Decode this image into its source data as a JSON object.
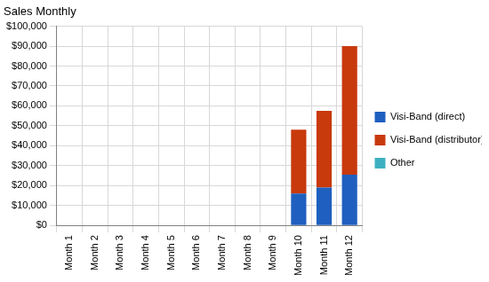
{
  "chart_data": {
    "type": "bar",
    "title": "Sales Monthly",
    "categories": [
      "Month 1",
      "Month 2",
      "Month 3",
      "Month 4",
      "Month 5",
      "Month 6",
      "Month 7",
      "Month 8",
      "Month 9",
      "Month 10",
      "Month 11",
      "Month 12"
    ],
    "series": [
      {
        "name": "Visi-Band (direct)",
        "color": "#1f5fbf",
        "values": [
          0,
          0,
          0,
          0,
          0,
          0,
          0,
          0,
          0,
          16000,
          19000,
          25500
        ]
      },
      {
        "name": "Visi-Band (distributor)",
        "color": "#c8390c",
        "values": [
          0,
          0,
          0,
          0,
          0,
          0,
          0,
          0,
          0,
          32000,
          38500,
          64500
        ]
      },
      {
        "name": "Other",
        "color": "#3cb0c0",
        "values": [
          0,
          0,
          0,
          0,
          0,
          0,
          0,
          0,
          0,
          0,
          0,
          0
        ]
      }
    ],
    "ylim": [
      0,
      100000
    ],
    "yticks": [
      {
        "value": 0,
        "label": "$0"
      },
      {
        "value": 10000,
        "label": "$10,000"
      },
      {
        "value": 20000,
        "label": "$20,000"
      },
      {
        "value": 30000,
        "label": "$30,000"
      },
      {
        "value": 40000,
        "label": "$40,000"
      },
      {
        "value": 50000,
        "label": "$50,000"
      },
      {
        "value": 60000,
        "label": "$60,000"
      },
      {
        "value": 70000,
        "label": "$70,000"
      },
      {
        "value": 80000,
        "label": "$80,000"
      },
      {
        "value": 90000,
        "label": "$90,000"
      },
      {
        "value": 100000,
        "label": "$100,000"
      }
    ],
    "grid": true,
    "stacked": true,
    "legend": "right"
  }
}
